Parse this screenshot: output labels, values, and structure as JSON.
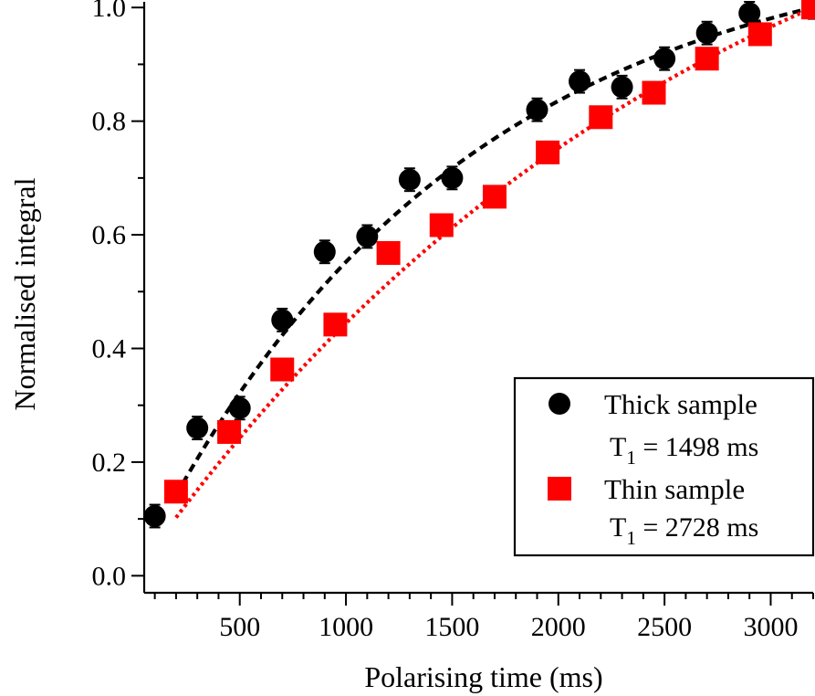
{
  "chart_data": {
    "type": "scatter",
    "xlabel": "Polarising time (ms)",
    "ylabel": "Normalised integral",
    "xlim": [
      50,
      3200
    ],
    "ylim": [
      -0.03,
      1.01
    ],
    "xticks": [
      500,
      1000,
      1500,
      2000,
      2500,
      3000
    ],
    "xtick_labels": [
      "500",
      "1000",
      "1500",
      "2000",
      "2500",
      "3000"
    ],
    "x_minor_step": 100,
    "yticks": [
      0.0,
      0.2,
      0.4,
      0.6,
      0.8,
      1.0
    ],
    "ytick_labels": [
      "0.0",
      "0.2",
      "0.4",
      "0.6",
      "0.8",
      "1.0"
    ],
    "grid": false,
    "legend_position": "bottom-right",
    "series": [
      {
        "name": "Thick sample",
        "t1_prefix": "T",
        "t1_sub": "1",
        "t1_rest": " = 1498 ms",
        "t1_ms": 1498,
        "marker": "circle",
        "color": "#000000",
        "fit_style": "dashed",
        "x": [
          100,
          300,
          500,
          700,
          900,
          1100,
          1300,
          1500,
          1900,
          2100,
          2300,
          2500,
          2700,
          2900,
          3200
        ],
        "y": [
          0.105,
          0.26,
          0.295,
          0.45,
          0.57,
          0.597,
          0.697,
          0.7,
          0.82,
          0.87,
          0.86,
          0.91,
          0.955,
          0.99,
          1.0
        ],
        "yerr": [
          0.02,
          0.02,
          0.02,
          0.02,
          0.02,
          0.02,
          0.02,
          0.02,
          0.02,
          0.02,
          0.02,
          0.02,
          0.02,
          0.02,
          0.02
        ]
      },
      {
        "name": "Thin sample",
        "t1_prefix": "T",
        "t1_sub": "1",
        "t1_rest": " = 2728 ms",
        "t1_ms": 2728,
        "marker": "square",
        "color": "#ff0000",
        "fit_style": "dotted",
        "x": [
          200,
          450,
          700,
          950,
          1200,
          1450,
          1700,
          1950,
          2200,
          2450,
          2700,
          2950,
          3200
        ],
        "y": [
          0.148,
          0.253,
          0.363,
          0.442,
          0.568,
          0.617,
          0.667,
          0.745,
          0.807,
          0.85,
          0.91,
          0.953,
          1.0
        ]
      }
    ]
  }
}
